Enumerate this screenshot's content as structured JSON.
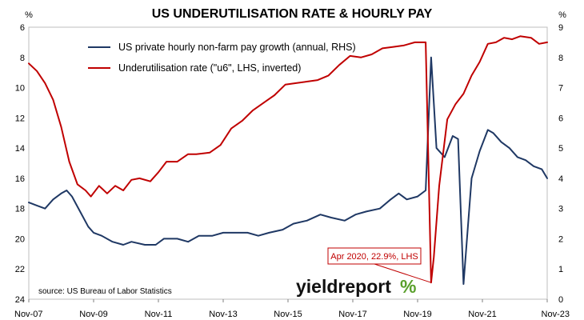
{
  "chart_data": {
    "type": "line",
    "title": "US UNDERUTILISATION RATE & HOURLY PAY",
    "left_unit": "%",
    "right_unit": "%",
    "source": "source: US Bureau of Labor Statistics",
    "logo": {
      "text": "yieldreport",
      "symbol": "%",
      "accent_color": "#5aa02c"
    },
    "annotation": {
      "text": "Apr 2020, 22.9%, LHS",
      "date": "2020-04",
      "value": 22.9
    },
    "x_axis": {
      "range": [
        "2007-11",
        "2023-11"
      ],
      "tick_dates": [
        "2007-11",
        "2009-11",
        "2011-11",
        "2013-11",
        "2015-11",
        "2017-11",
        "2019-11",
        "2021-11",
        "2023-11"
      ],
      "tick_labels": [
        "Nov-07",
        "Nov-09",
        "Nov-11",
        "Nov-13",
        "Nov-15",
        "Nov-17",
        "Nov-19",
        "Nov-21",
        "Nov-23"
      ]
    },
    "left_axis": {
      "min": 6,
      "max": 24,
      "inverted": true,
      "ticks": [
        6,
        8,
        10,
        12,
        14,
        16,
        18,
        20,
        22,
        24
      ]
    },
    "right_axis": {
      "min": 0,
      "max": 9,
      "inverted": false,
      "ticks": [
        0,
        1,
        2,
        3,
        4,
        5,
        6,
        7,
        8,
        9
      ]
    },
    "legend": {
      "placement": "top-left"
    },
    "series": [
      {
        "name": "US private hourly non-farm pay growth (annual, RHS)",
        "axis": "right",
        "color": "#1f3864",
        "points": [
          [
            "2007-11",
            3.2
          ],
          [
            "2008-02",
            3.1
          ],
          [
            "2008-05",
            3.0
          ],
          [
            "2008-08",
            3.3
          ],
          [
            "2008-11",
            3.5
          ],
          [
            "2009-01",
            3.6
          ],
          [
            "2009-03",
            3.4
          ],
          [
            "2009-06",
            2.9
          ],
          [
            "2009-09",
            2.4
          ],
          [
            "2009-11",
            2.2
          ],
          [
            "2010-02",
            2.1
          ],
          [
            "2010-06",
            1.9
          ],
          [
            "2010-10",
            1.8
          ],
          [
            "2011-01",
            1.9
          ],
          [
            "2011-06",
            1.8
          ],
          [
            "2011-10",
            1.8
          ],
          [
            "2012-01",
            2.0
          ],
          [
            "2012-06",
            2.0
          ],
          [
            "2012-10",
            1.9
          ],
          [
            "2013-02",
            2.1
          ],
          [
            "2013-07",
            2.1
          ],
          [
            "2013-11",
            2.2
          ],
          [
            "2014-03",
            2.2
          ],
          [
            "2014-08",
            2.2
          ],
          [
            "2014-12",
            2.1
          ],
          [
            "2015-04",
            2.2
          ],
          [
            "2015-09",
            2.3
          ],
          [
            "2016-01",
            2.5
          ],
          [
            "2016-06",
            2.6
          ],
          [
            "2016-11",
            2.8
          ],
          [
            "2017-03",
            2.7
          ],
          [
            "2017-08",
            2.6
          ],
          [
            "2017-12",
            2.8
          ],
          [
            "2018-04",
            2.9
          ],
          [
            "2018-09",
            3.0
          ],
          [
            "2019-01",
            3.3
          ],
          [
            "2019-04",
            3.5
          ],
          [
            "2019-07",
            3.3
          ],
          [
            "2019-11",
            3.4
          ],
          [
            "2020-02",
            3.6
          ],
          [
            "2020-04",
            8.0
          ],
          [
            "2020-06",
            5.0
          ],
          [
            "2020-09",
            4.7
          ],
          [
            "2020-12",
            5.4
          ],
          [
            "2021-02",
            5.3
          ],
          [
            "2021-04",
            0.5
          ],
          [
            "2021-07",
            4.0
          ],
          [
            "2021-10",
            4.9
          ],
          [
            "2022-01",
            5.6
          ],
          [
            "2022-03",
            5.5
          ],
          [
            "2022-06",
            5.2
          ],
          [
            "2022-09",
            5.0
          ],
          [
            "2022-12",
            4.7
          ],
          [
            "2023-03",
            4.6
          ],
          [
            "2023-06",
            4.4
          ],
          [
            "2023-09",
            4.3
          ],
          [
            "2023-11",
            4.0
          ]
        ]
      },
      {
        "name": "Underutilisation rate (\"u6\", LHS, inverted)",
        "axis": "left",
        "color": "#c00000",
        "points": [
          [
            "2007-11",
            8.4
          ],
          [
            "2008-02",
            8.9
          ],
          [
            "2008-05",
            9.7
          ],
          [
            "2008-08",
            10.8
          ],
          [
            "2008-11",
            12.6
          ],
          [
            "2009-02",
            14.9
          ],
          [
            "2009-05",
            16.4
          ],
          [
            "2009-08",
            16.8
          ],
          [
            "2009-10",
            17.2
          ],
          [
            "2010-01",
            16.5
          ],
          [
            "2010-04",
            17.0
          ],
          [
            "2010-07",
            16.5
          ],
          [
            "2010-10",
            16.8
          ],
          [
            "2011-01",
            16.1
          ],
          [
            "2011-04",
            16.0
          ],
          [
            "2011-08",
            16.2
          ],
          [
            "2011-11",
            15.6
          ],
          [
            "2012-02",
            14.9
          ],
          [
            "2012-06",
            14.9
          ],
          [
            "2012-10",
            14.4
          ],
          [
            "2013-01",
            14.4
          ],
          [
            "2013-06",
            14.3
          ],
          [
            "2013-10",
            13.8
          ],
          [
            "2014-02",
            12.7
          ],
          [
            "2014-06",
            12.2
          ],
          [
            "2014-10",
            11.5
          ],
          [
            "2015-02",
            11.0
          ],
          [
            "2015-06",
            10.5
          ],
          [
            "2015-10",
            9.8
          ],
          [
            "2016-02",
            9.7
          ],
          [
            "2016-06",
            9.6
          ],
          [
            "2016-10",
            9.5
          ],
          [
            "2017-02",
            9.2
          ],
          [
            "2017-06",
            8.5
          ],
          [
            "2017-10",
            7.9
          ],
          [
            "2018-02",
            8.0
          ],
          [
            "2018-06",
            7.8
          ],
          [
            "2018-10",
            7.4
          ],
          [
            "2019-02",
            7.3
          ],
          [
            "2019-06",
            7.2
          ],
          [
            "2019-10",
            7.0
          ],
          [
            "2020-02",
            7.0
          ],
          [
            "2020-04",
            22.9
          ],
          [
            "2020-05",
            21.2
          ],
          [
            "2020-07",
            16.5
          ],
          [
            "2020-10",
            12.1
          ],
          [
            "2021-01",
            11.1
          ],
          [
            "2021-04",
            10.4
          ],
          [
            "2021-07",
            9.2
          ],
          [
            "2021-10",
            8.3
          ],
          [
            "2022-01",
            7.1
          ],
          [
            "2022-04",
            7.0
          ],
          [
            "2022-07",
            6.7
          ],
          [
            "2022-10",
            6.8
          ],
          [
            "2023-01",
            6.6
          ],
          [
            "2023-05",
            6.7
          ],
          [
            "2023-08",
            7.1
          ],
          [
            "2023-11",
            7.0
          ]
        ]
      }
    ]
  }
}
